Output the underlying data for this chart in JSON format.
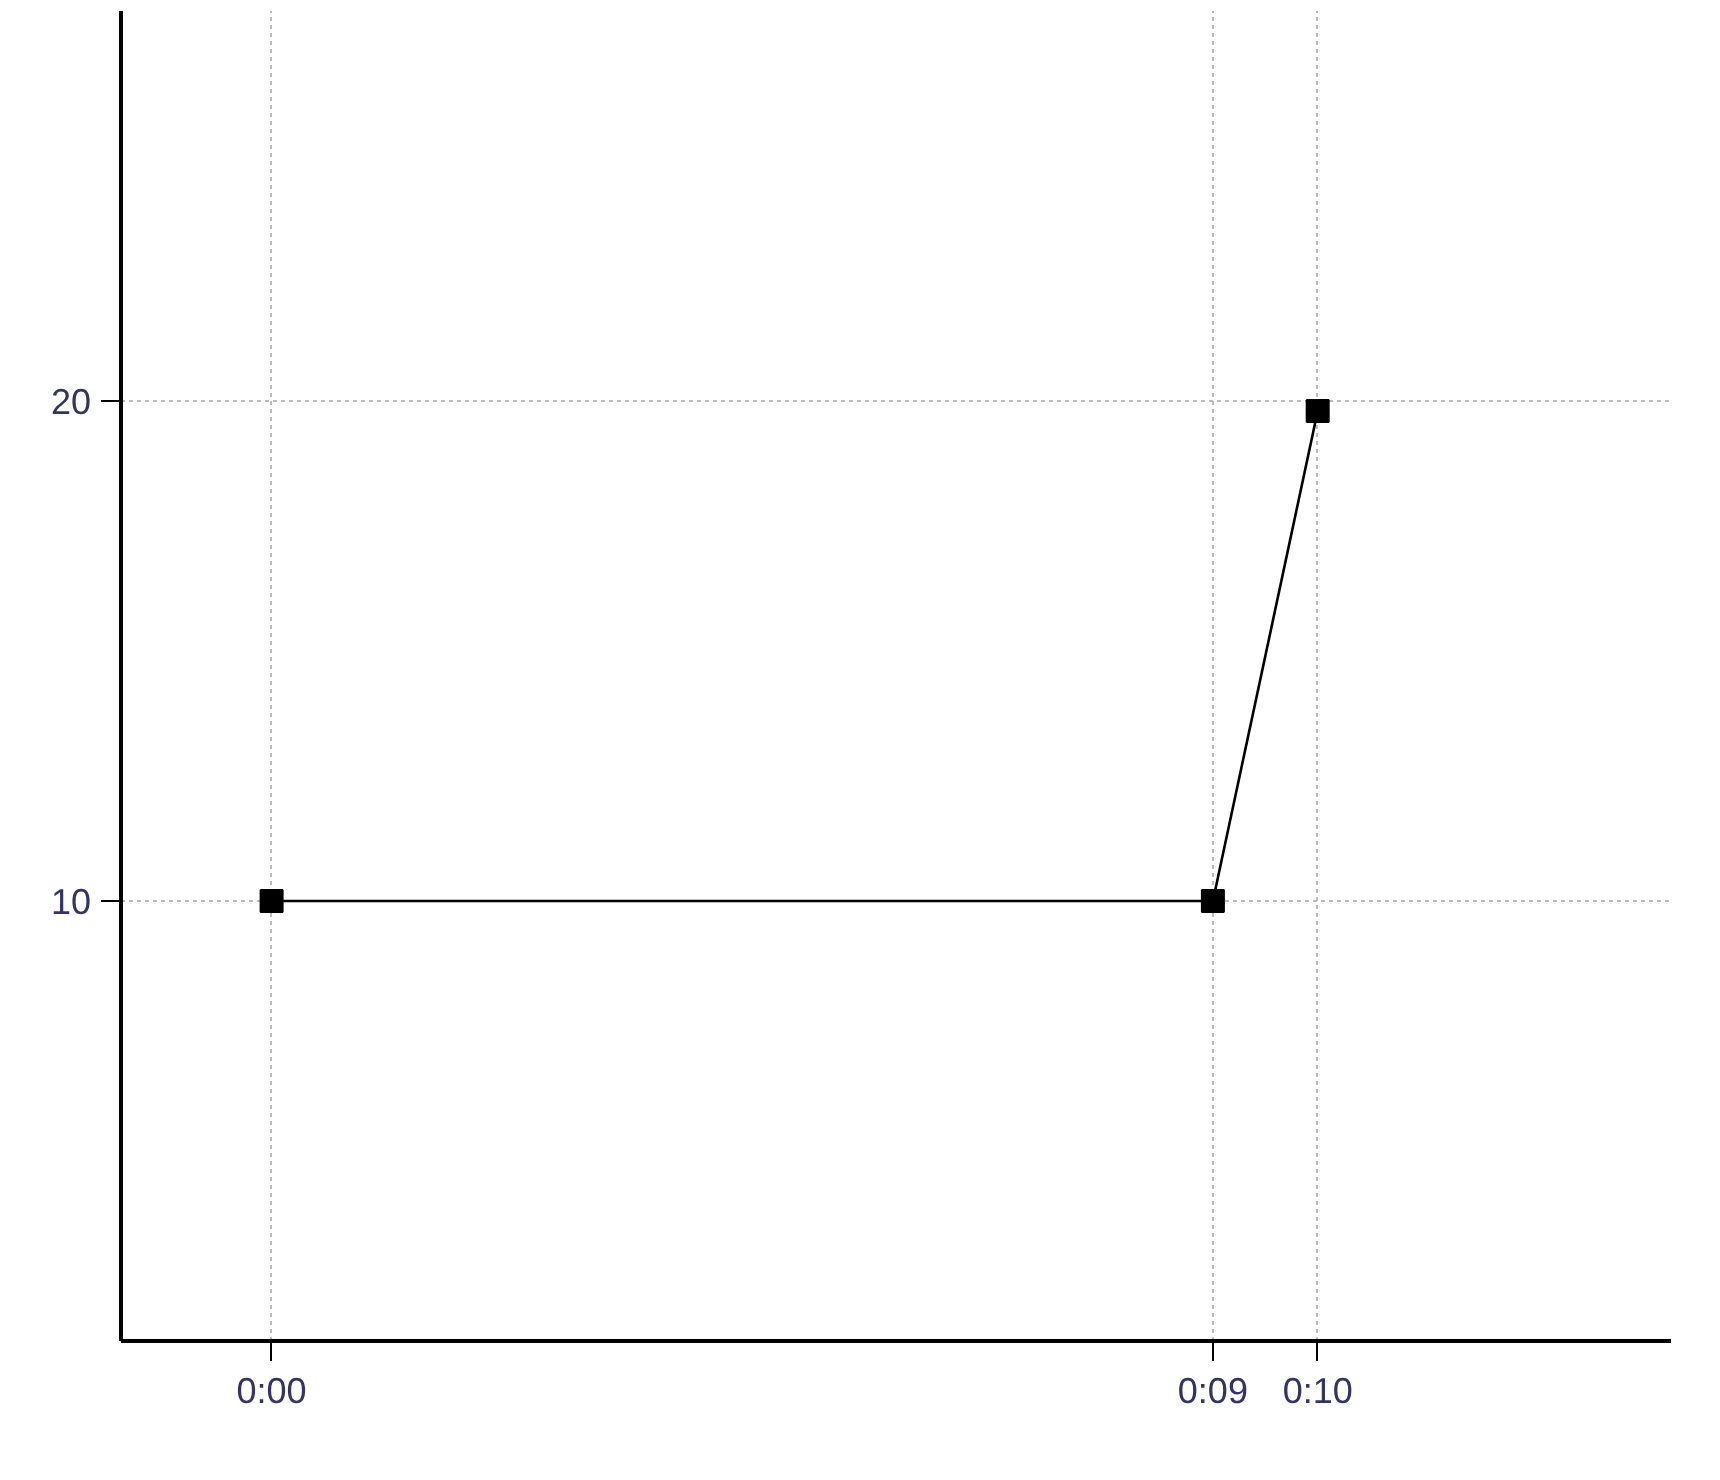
{
  "chart_data": {
    "type": "line",
    "x": [
      0,
      0.15,
      0.1667
    ],
    "series": [
      {
        "color": "#000000",
        "values": [
          10,
          10,
          19.8
        ]
      }
    ],
    "xlim": [
      -0.024,
      0.223
    ],
    "ylim": [
      1.2,
      27.8
    ],
    "xticks": [
      {
        "value": 0,
        "label": "0:00"
      },
      {
        "value": 0.15,
        "label": "0:09"
      },
      {
        "value": 0.1667,
        "label": "0:10"
      }
    ],
    "yticks": [
      10,
      20
    ],
    "grid": true,
    "marker": "square",
    "line_style": "solid"
  }
}
